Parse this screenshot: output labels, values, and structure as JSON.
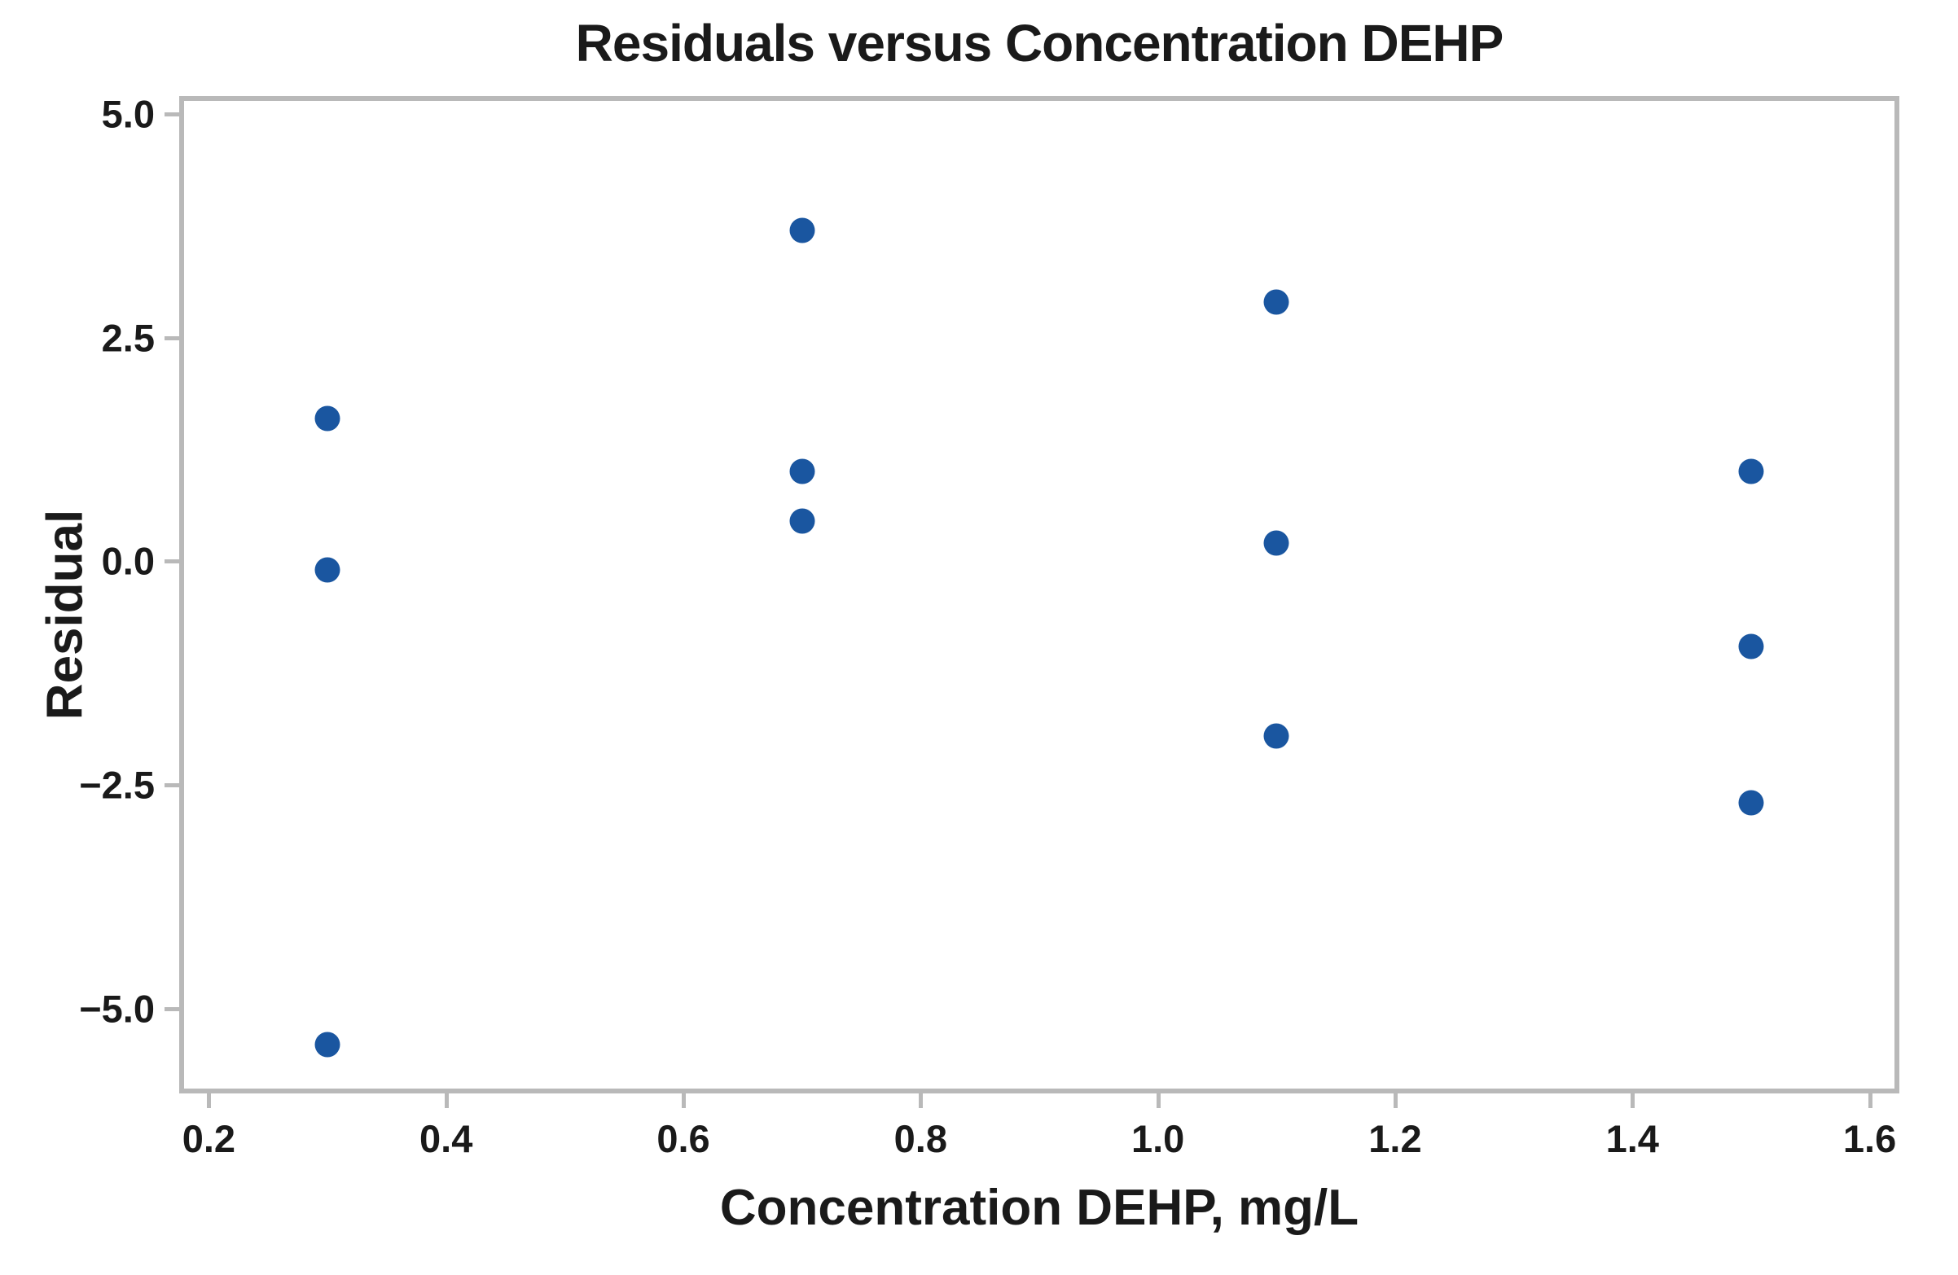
{
  "chart_data": {
    "type": "scatter",
    "title": "Residuals versus Concentration DEHP",
    "xlabel": "Concentration DEHP, mg/L",
    "ylabel": "Residual",
    "xlim": [
      0.175,
      1.625
    ],
    "ylim": [
      -5.95,
      5.2
    ],
    "x_ticks": [
      0.2,
      0.4,
      0.6,
      0.8,
      1.0,
      1.2,
      1.4,
      1.6
    ],
    "x_tick_labels": [
      "0.2",
      "0.4",
      "0.6",
      "0.8",
      "1.0",
      "1.2",
      "1.4",
      "1.6"
    ],
    "y_ticks": [
      5.0,
      2.5,
      0.0,
      -2.5,
      -5.0
    ],
    "y_tick_labels": [
      "5.0",
      "2.5",
      "0.0",
      "−2.5",
      "−5.0"
    ],
    "grid": false,
    "legend_position": "none",
    "marker_color": "#1a56a0",
    "frame_color": "#b9b9b9",
    "points": [
      {
        "x": 0.3,
        "y": 1.6
      },
      {
        "x": 0.3,
        "y": -0.1
      },
      {
        "x": 0.3,
        "y": -5.4
      },
      {
        "x": 0.7,
        "y": 3.7
      },
      {
        "x": 0.7,
        "y": 1.0
      },
      {
        "x": 0.7,
        "y": 0.45
      },
      {
        "x": 1.1,
        "y": 2.9
      },
      {
        "x": 1.1,
        "y": 0.2
      },
      {
        "x": 1.1,
        "y": -1.95
      },
      {
        "x": 1.5,
        "y": 1.0
      },
      {
        "x": 1.5,
        "y": -0.95
      },
      {
        "x": 1.5,
        "y": -2.7
      }
    ]
  }
}
